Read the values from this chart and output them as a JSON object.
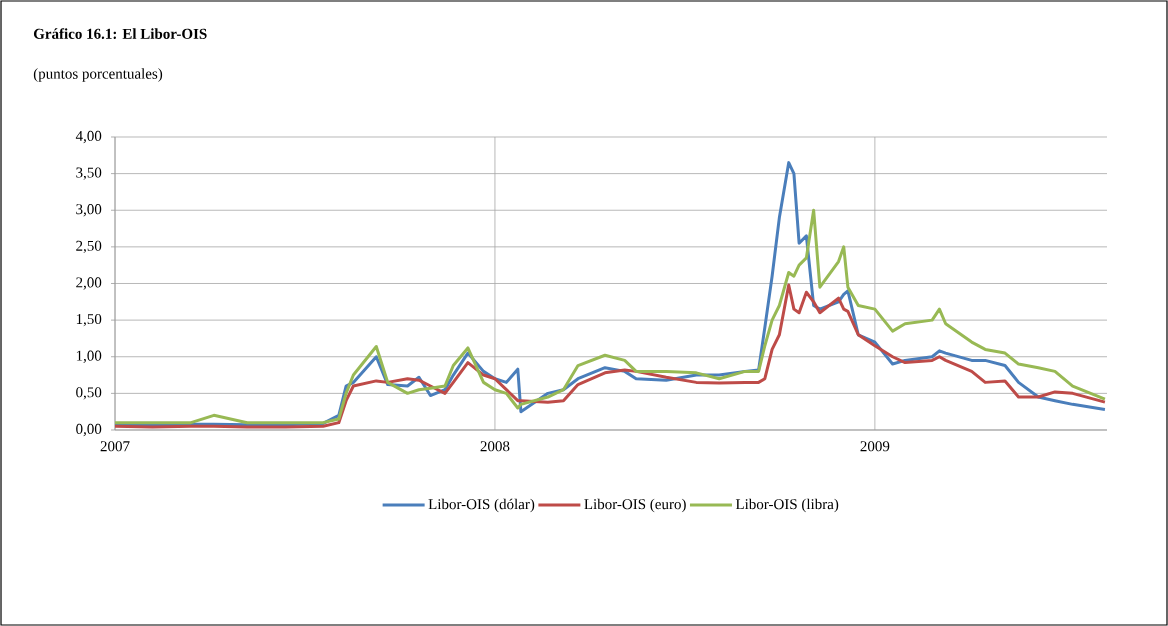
{
  "chart_data": {
    "type": "line",
    "title": "Gráfico 16.1: El Libor-OIS",
    "subtitle": "(puntos porcentuales)",
    "x": [
      "2007-01-01",
      "2007-02-06",
      "2007-03-15",
      "2007-04-06",
      "2007-05-08",
      "2007-06-14",
      "2007-07-20",
      "2007-08-04",
      "2007-08-11",
      "2007-08-18",
      "2007-09-09",
      "2007-09-20",
      "2007-10-09",
      "2007-10-20",
      "2007-10-31",
      "2007-11-14",
      "2007-11-22",
      "2007-12-06",
      "2007-12-21",
      "2008-01-01",
      "2008-01-12",
      "2008-01-23",
      "2008-01-26",
      "2008-02-21",
      "2008-03-07",
      "2008-03-21",
      "2008-04-16",
      "2008-05-05",
      "2008-05-16",
      "2008-06-14",
      "2008-07-13",
      "2008-08-04",
      "2008-08-29",
      "2008-09-11",
      "2008-09-17",
      "2008-09-24",
      "2008-10-01",
      "2008-10-10",
      "2008-10-15",
      "2008-10-20",
      "2008-10-27",
      "2008-11-03",
      "2008-11-09",
      "2008-11-27",
      "2008-12-02",
      "2008-12-06",
      "2008-12-16",
      "2009-01-01",
      "2009-01-18",
      "2009-01-30",
      "2009-02-25",
      "2009-03-04",
      "2009-03-10",
      "2009-04-04",
      "2009-04-17",
      "2009-05-06",
      "2009-05-19",
      "2009-06-07",
      "2009-06-23",
      "2009-07-10",
      "2009-08-10"
    ],
    "series": [
      {
        "name": "Libor-OIS (dólar)",
        "color": "#4a7ebb",
        "values": [
          0.08,
          0.06,
          0.08,
          0.08,
          0.07,
          0.07,
          0.09,
          0.2,
          0.6,
          0.65,
          1.0,
          0.62,
          0.6,
          0.72,
          0.47,
          0.55,
          0.75,
          1.05,
          0.8,
          0.7,
          0.65,
          0.83,
          0.25,
          0.5,
          0.55,
          0.7,
          0.85,
          0.8,
          0.7,
          0.68,
          0.75,
          0.75,
          0.8,
          0.82,
          1.4,
          2.1,
          2.9,
          3.65,
          3.5,
          2.55,
          2.65,
          1.7,
          1.65,
          1.75,
          1.85,
          1.9,
          1.3,
          1.2,
          0.9,
          0.95,
          1.0,
          1.08,
          1.05,
          0.95,
          0.95,
          0.88,
          0.65,
          0.45,
          0.4,
          0.35,
          0.28
        ]
      },
      {
        "name": "Libor-OIS (euro)",
        "color": "#be4b48",
        "values": [
          0.05,
          0.04,
          0.05,
          0.05,
          0.04,
          0.04,
          0.05,
          0.1,
          0.4,
          0.6,
          0.67,
          0.65,
          0.7,
          0.68,
          0.6,
          0.5,
          0.65,
          0.92,
          0.75,
          0.7,
          0.55,
          0.4,
          0.4,
          0.38,
          0.4,
          0.62,
          0.78,
          0.82,
          0.8,
          0.72,
          0.65,
          0.64,
          0.65,
          0.65,
          0.7,
          1.1,
          1.3,
          1.98,
          1.65,
          1.6,
          1.88,
          1.75,
          1.6,
          1.8,
          1.65,
          1.62,
          1.3,
          1.15,
          1.0,
          0.92,
          0.95,
          1.0,
          0.95,
          0.8,
          0.65,
          0.67,
          0.45,
          0.45,
          0.52,
          0.5,
          0.38
        ]
      },
      {
        "name": "Libor-OIS (libra)",
        "color": "#98b954",
        "values": [
          0.1,
          0.1,
          0.1,
          0.2,
          0.1,
          0.1,
          0.1,
          0.15,
          0.5,
          0.75,
          1.14,
          0.65,
          0.5,
          0.55,
          0.57,
          0.6,
          0.88,
          1.12,
          0.65,
          0.55,
          0.5,
          0.3,
          0.35,
          0.45,
          0.55,
          0.88,
          1.02,
          0.95,
          0.8,
          0.8,
          0.78,
          0.7,
          0.8,
          0.8,
          1.15,
          1.5,
          1.7,
          2.15,
          2.1,
          2.25,
          2.35,
          3.0,
          1.95,
          2.3,
          2.5,
          1.95,
          1.7,
          1.65,
          1.35,
          1.45,
          1.5,
          1.65,
          1.45,
          1.2,
          1.1,
          1.05,
          0.9,
          0.85,
          0.8,
          0.6,
          0.42
        ]
      }
    ],
    "xlim": [
      "2007-01-01",
      "2009-08-12"
    ],
    "xticks": [
      "2007",
      "2008",
      "2009"
    ],
    "ylim": [
      0,
      4
    ],
    "yticks": [
      {
        "value": 0,
        "label": "0,00"
      },
      {
        "value": 0.5,
        "label": "0,50"
      },
      {
        "value": 1,
        "label": "1,00"
      },
      {
        "value": 1.5,
        "label": "1,50"
      },
      {
        "value": 2,
        "label": "2,00"
      },
      {
        "value": 2.5,
        "label": "2,50"
      },
      {
        "value": 3,
        "label": "3,00"
      },
      {
        "value": 3.5,
        "label": "3,50"
      },
      {
        "value": 4,
        "label": "4,00"
      }
    ],
    "grid": true,
    "legend": "bottom"
  }
}
